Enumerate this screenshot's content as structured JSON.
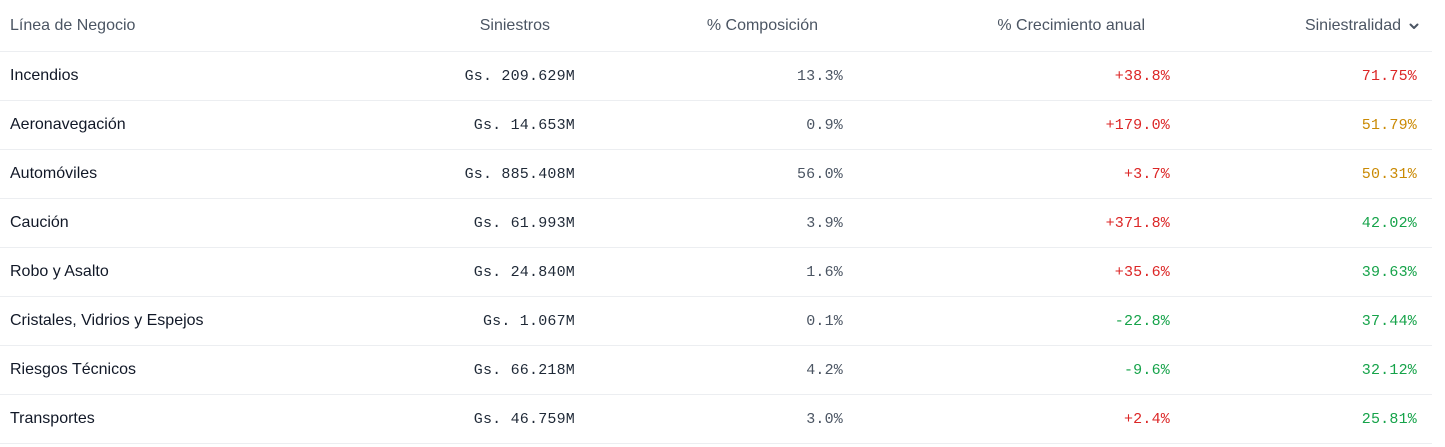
{
  "table": {
    "headers": {
      "line": "Línea de Negocio",
      "claims": "Siniestros",
      "composition": "% Composición",
      "growth": "% Crecimiento anual",
      "loss_ratio": "Siniestralidad"
    },
    "sort": {
      "column": "Siniestralidad",
      "direction": "descending",
      "icon": "chevron-down-icon"
    },
    "rows": [
      {
        "line": "Incendios",
        "claims": "Gs. 209.629M",
        "composition": "13.3%",
        "growth": "+38.8%",
        "loss_ratio": "71.75%",
        "growth_color": "#dc2626",
        "loss_ratio_color": "#dc2626"
      },
      {
        "line": "Aeronavegación",
        "claims": "Gs. 14.653M",
        "composition": "0.9%",
        "growth": "+179.0%",
        "loss_ratio": "51.79%",
        "growth_color": "#dc2626",
        "loss_ratio_color": "#ca8a04"
      },
      {
        "line": "Automóviles",
        "claims": "Gs. 885.408M",
        "composition": "56.0%",
        "growth": "+3.7%",
        "loss_ratio": "50.31%",
        "growth_color": "#dc2626",
        "loss_ratio_color": "#ca8a04"
      },
      {
        "line": "Caución",
        "claims": "Gs. 61.993M",
        "composition": "3.9%",
        "growth": "+371.8%",
        "loss_ratio": "42.02%",
        "growth_color": "#dc2626",
        "loss_ratio_color": "#16a34a"
      },
      {
        "line": "Robo y Asalto",
        "claims": "Gs. 24.840M",
        "composition": "1.6%",
        "growth": "+35.6%",
        "loss_ratio": "39.63%",
        "growth_color": "#dc2626",
        "loss_ratio_color": "#16a34a"
      },
      {
        "line": "Cristales, Vidrios y Espejos",
        "claims": "Gs. 1.067M",
        "composition": "0.1%",
        "growth": "-22.8%",
        "loss_ratio": "37.44%",
        "growth_color": "#16a34a",
        "loss_ratio_color": "#16a34a"
      },
      {
        "line": "Riesgos Técnicos",
        "claims": "Gs. 66.218M",
        "composition": "4.2%",
        "growth": "-9.6%",
        "loss_ratio": "32.12%",
        "growth_color": "#16a34a",
        "loss_ratio_color": "#16a34a"
      },
      {
        "line": "Transportes",
        "claims": "Gs. 46.759M",
        "composition": "3.0%",
        "growth": "+2.4%",
        "loss_ratio": "25.81%",
        "growth_color": "#dc2626",
        "loss_ratio_color": "#16a34a"
      }
    ]
  }
}
